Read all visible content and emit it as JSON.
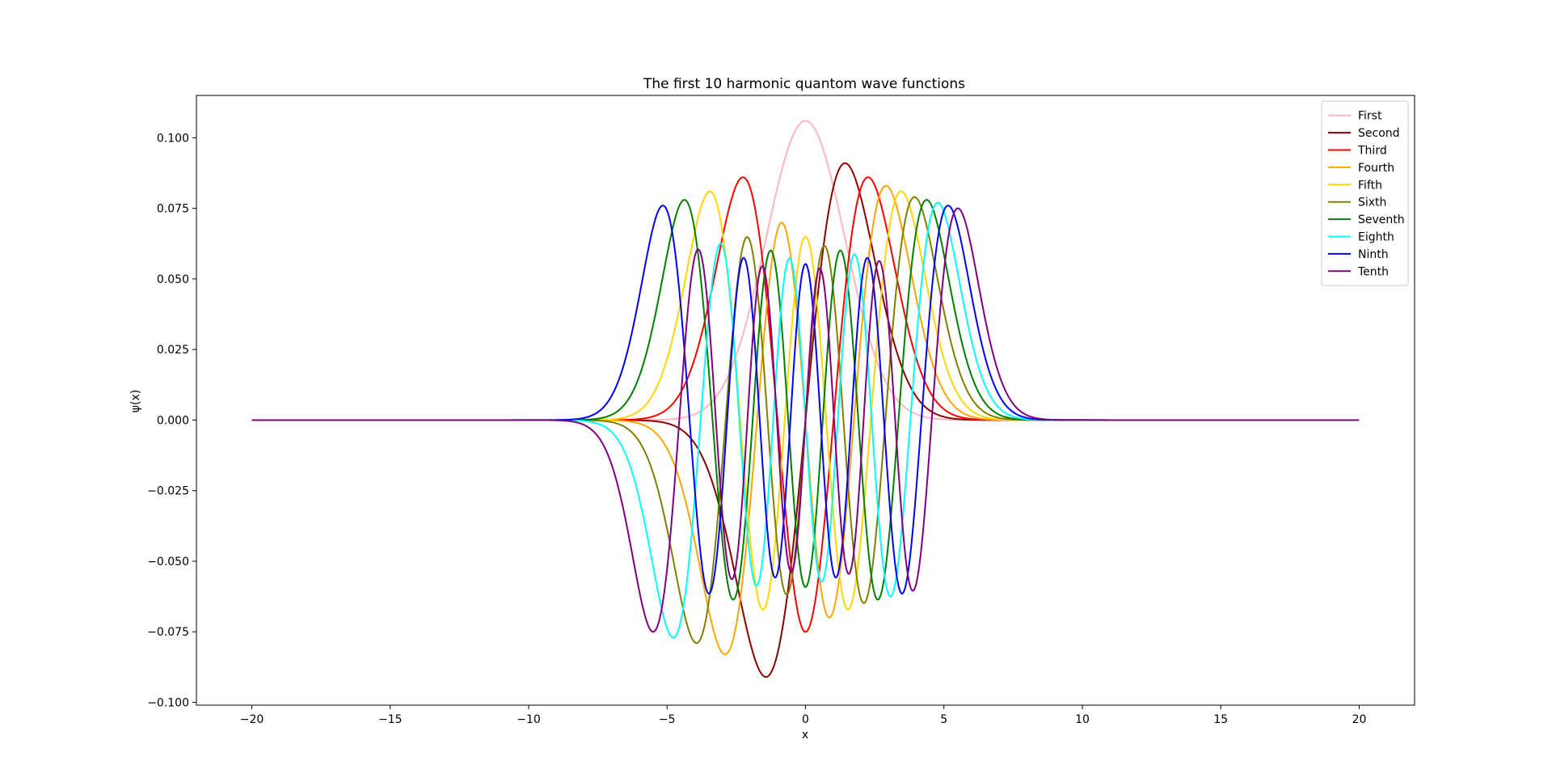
{
  "chart_data": {
    "type": "line",
    "title": "The first 10 harmonic quantom wave functions",
    "xlabel": "x",
    "ylabel": "ψ(x)",
    "xlim": [
      -22,
      22
    ],
    "ylim": [
      -0.101,
      0.115
    ],
    "x_domain": [
      -20,
      20
    ],
    "x_ticks": [
      -20,
      -15,
      -10,
      -5,
      0,
      5,
      10,
      15,
      20
    ],
    "x_tick_labels": [
      "−20",
      "−15",
      "−10",
      "−5",
      "0",
      "5",
      "10",
      "15",
      "20"
    ],
    "y_ticks": [
      -0.1,
      -0.075,
      -0.05,
      -0.025,
      0.0,
      0.025,
      0.05,
      0.075,
      0.1
    ],
    "y_tick_labels": [
      "−0.100",
      "−0.075",
      "−0.050",
      "−0.025",
      "0.000",
      "0.025",
      "0.050",
      "0.075",
      "0.100"
    ],
    "grid": false,
    "legend_position": "top-right",
    "series": [
      {
        "name": "First",
        "n": 0,
        "color": "#ffb6c1",
        "peak": 0.106,
        "x_scale": 0.7
      },
      {
        "name": "Second",
        "n": 1,
        "color": "#8b0000",
        "peak": 0.091,
        "x_scale": 0.7
      },
      {
        "name": "Third",
        "n": 2,
        "color": "#ff0000",
        "peak": 0.086,
        "x_scale": 0.7
      },
      {
        "name": "Fourth",
        "n": 3,
        "color": "#ffa500",
        "peak": 0.083,
        "x_scale": 0.7
      },
      {
        "name": "Fifth",
        "n": 4,
        "color": "#ffd700",
        "peak": 0.081,
        "x_scale": 0.7
      },
      {
        "name": "Sixth",
        "n": 5,
        "color": "#808000",
        "peak": 0.079,
        "x_scale": 0.7
      },
      {
        "name": "Seventh",
        "n": 6,
        "color": "#008000",
        "peak": 0.078,
        "x_scale": 0.7
      },
      {
        "name": "Eighth",
        "n": 7,
        "color": "#00ffff",
        "peak": 0.077,
        "x_scale": 0.7
      },
      {
        "name": "Ninth",
        "n": 8,
        "color": "#0000ff",
        "peak": 0.076,
        "x_scale": 0.7
      },
      {
        "name": "Tenth",
        "n": 9,
        "color": "#800080",
        "peak": 0.075,
        "x_scale": 0.7
      }
    ]
  }
}
